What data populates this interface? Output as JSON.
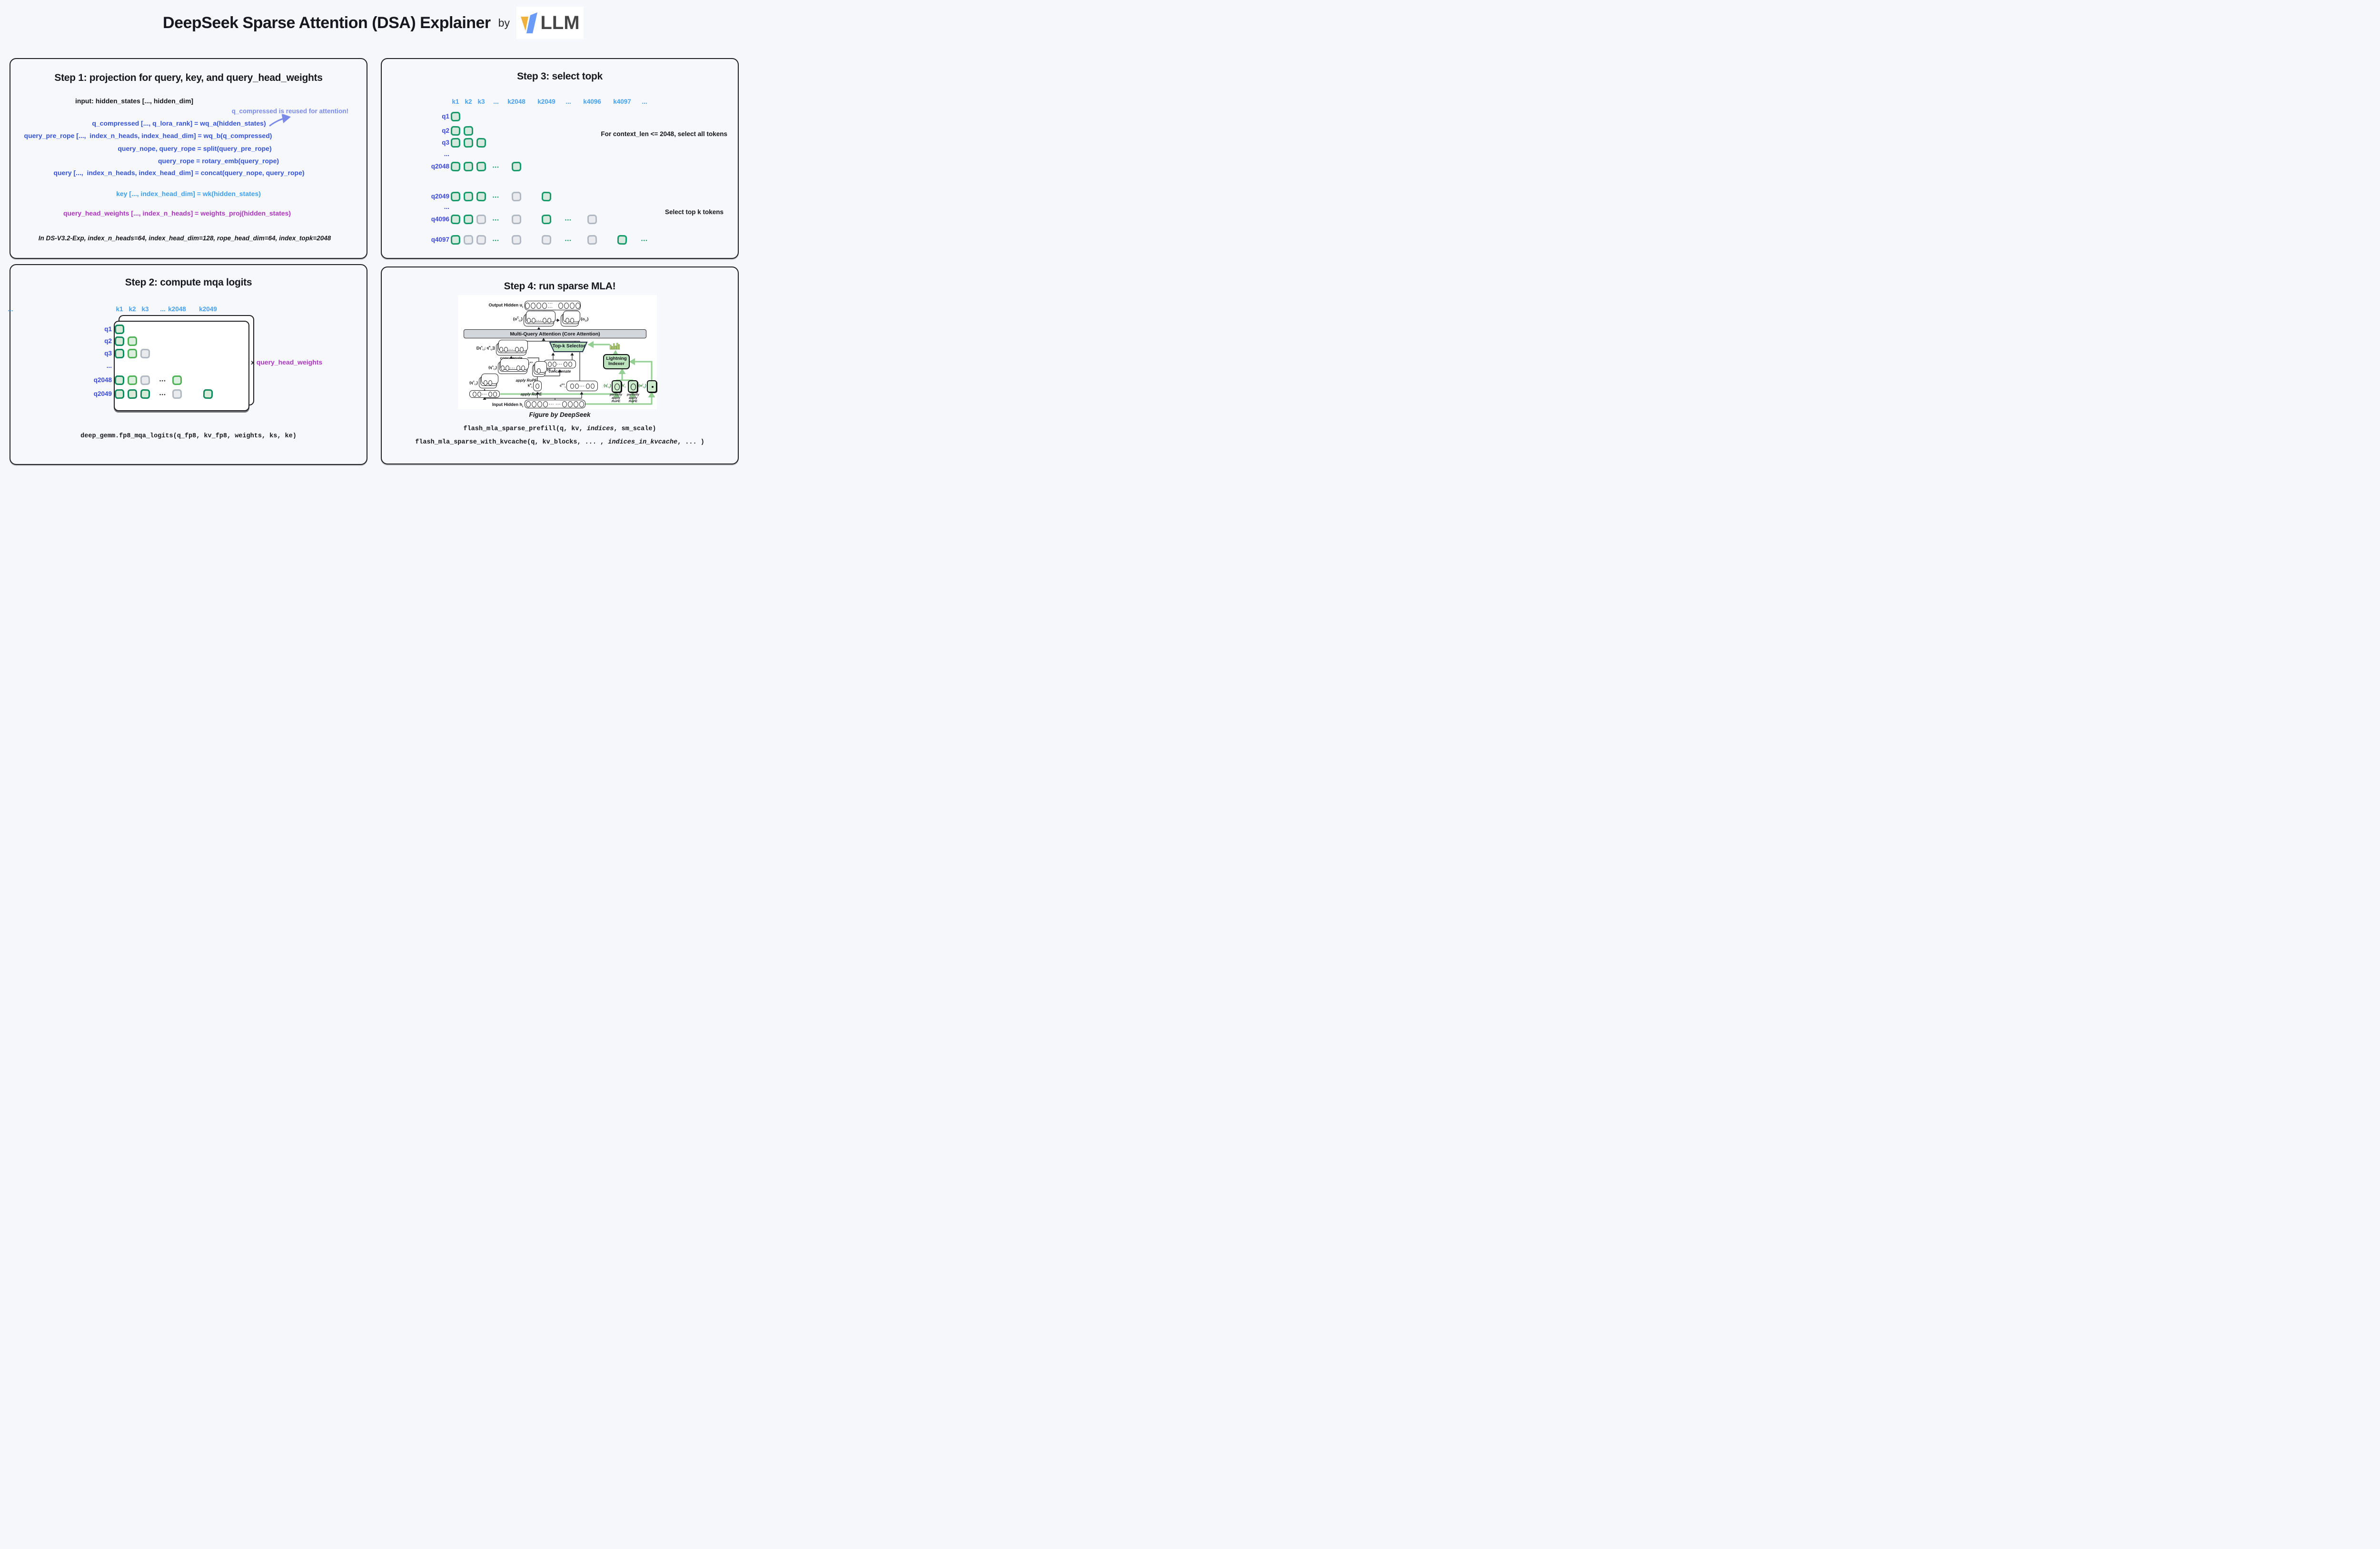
{
  "header": {
    "title": "DeepSeek Sparse Attention (DSA) Explainer",
    "by": "by",
    "logo_text": "LLM"
  },
  "colors": {
    "vllm_yellow": "#f0b23e",
    "vllm_blue": "#6a9bf7",
    "equation_blue": "#3453d6",
    "key_blue": "#3da0ee",
    "annotation_periwinkle": "#7a8ae8",
    "weights_magenta": "#ac34c0",
    "q_label_indigo": "#3a49dd",
    "k_label_sky": "#46a1f2",
    "selected_green": "#18996a",
    "selected_fill": "#d7e9de",
    "dark_green": "#0f8a5e",
    "medium_green": "#4db255",
    "unselected_gray": "#b1b8c2",
    "indexer_green": "#bce3be"
  },
  "step1": {
    "title": "Step 1: projection for query, key, and query_head_weights",
    "input_line": "input: hidden_states [..., hidden_dim]",
    "annotation": "q_compressed is reused for attention!",
    "eq_q_compressed": "q_compressed [..., q_lora_rank] = wq_a(hidden_states)",
    "eq_query_pre_rope": "query_pre_rope [...,  index_n_heads, index_head_dim] = wq_b(q_compressed)",
    "eq_split": "query_nope, query_rope = split(query_pre_rope)",
    "eq_rotary": "query_rope = rotary_emb(query_rope)",
    "eq_concat": "query [...,  index_n_heads, index_head_dim] = concat(query_nope, query_rope)",
    "eq_key": "key [..., index_head_dim] = wk(hidden_states)",
    "eq_weights": "query_head_weights [..., index_n_heads] = weights_proj(hidden_states)",
    "note": "In DS-V3.2-Exp, index_n_heads=64, index_head_dim=128, rope_head_dim=64, index_topk=2048"
  },
  "step2": {
    "title": "Step 2: compute mqa logits",
    "k_headers": [
      "k1",
      "k2",
      "k3",
      "...",
      "k2048",
      "k2049",
      "..."
    ],
    "rows": [
      {
        "label": "q1",
        "cells": [
          [
            0,
            "dk"
          ]
        ]
      },
      {
        "label": "q2",
        "cells": [
          [
            0,
            "dk"
          ],
          [
            1,
            "md"
          ]
        ]
      },
      {
        "label": "q3",
        "cells": [
          [
            0,
            "dk"
          ],
          [
            1,
            "md"
          ],
          [
            2,
            "un"
          ]
        ]
      },
      {
        "label": "...",
        "ellipsis": true,
        "cells": []
      },
      {
        "label": "q2048",
        "cells": [
          [
            0,
            "dk"
          ],
          [
            1,
            "md"
          ],
          [
            2,
            "un"
          ],
          [
            3,
            "dots"
          ],
          [
            4,
            "md"
          ]
        ]
      },
      {
        "label": "q2049",
        "cells": [
          [
            0,
            "dk"
          ],
          [
            1,
            "dk"
          ],
          [
            2,
            "dk"
          ],
          [
            3,
            "dots"
          ],
          [
            4,
            "un"
          ],
          [
            5,
            "dk"
          ]
        ]
      }
    ],
    "multiplier_x": "x",
    "multiplier_label": "query_head_weights",
    "code": "deep_gemm.fp8_mqa_logits(q_fp8, kv_fp8, weights, ks, ke)"
  },
  "step3": {
    "title": "Step 3: select topk",
    "k_headers": [
      "k1",
      "k2",
      "k3",
      "...",
      "k2048",
      "k2049",
      "...",
      "k4096",
      "k4097",
      "..."
    ],
    "rows": [
      {
        "label": "q1",
        "cells": [
          [
            0,
            "sel"
          ]
        ]
      },
      {
        "label": "q2",
        "cells": [
          [
            0,
            "sel"
          ],
          [
            1,
            "sel"
          ]
        ]
      },
      {
        "label": "q3",
        "cells": [
          [
            0,
            "sel"
          ],
          [
            1,
            "sel"
          ],
          [
            2,
            "sel"
          ]
        ]
      },
      {
        "label": "...",
        "ellipsis": true,
        "cells": []
      },
      {
        "label": "q2048",
        "cells": [
          [
            0,
            "sel"
          ],
          [
            1,
            "sel"
          ],
          [
            2,
            "sel"
          ],
          [
            3,
            "dots"
          ],
          [
            4,
            "sel"
          ]
        ]
      },
      {
        "label": "q2049",
        "cells": [
          [
            0,
            "sel"
          ],
          [
            1,
            "sel"
          ],
          [
            2,
            "sel"
          ],
          [
            3,
            "dots"
          ],
          [
            4,
            "un"
          ],
          [
            5,
            "sel"
          ]
        ]
      },
      {
        "label": "...",
        "ellipsis": true,
        "cells": []
      },
      {
        "label": "q4096",
        "cells": [
          [
            0,
            "sel"
          ],
          [
            1,
            "sel"
          ],
          [
            2,
            "un"
          ],
          [
            3,
            "dots"
          ],
          [
            4,
            "un"
          ],
          [
            5,
            "sel"
          ],
          [
            6,
            "dots"
          ],
          [
            7,
            "un"
          ]
        ]
      },
      {
        "label": "q4097",
        "cells": [
          [
            0,
            "sel"
          ],
          [
            1,
            "un"
          ],
          [
            2,
            "un"
          ],
          [
            3,
            "dots"
          ],
          [
            4,
            "un"
          ],
          [
            5,
            "un"
          ],
          [
            6,
            "dots"
          ],
          [
            7,
            "un"
          ],
          [
            8,
            "sel"
          ],
          [
            9,
            "dots"
          ]
        ]
      }
    ],
    "note_all": "For context_len <= 2048, select all tokens",
    "note_topk": "Select top k tokens"
  },
  "step4": {
    "title": "Step 4: run sparse MLA!",
    "caption": "Figure by DeepSeek",
    "code1": [
      [
        "flash_mla_sparse_prefill(q, kv, ",
        false
      ],
      [
        "indices",
        true
      ],
      [
        ", sm_scale)",
        false
      ]
    ],
    "code2": [
      [
        "flash_mla_sparse_with_kvcache(q, kv_blocks, ... , ",
        false
      ],
      [
        "indices_in_kvcache",
        true
      ],
      [
        ", ... )",
        false
      ]
    ],
    "figure": {
      "output_hidden": "Output Hidden u_{t}",
      "o_c": "{o^{C}_{t,i}}",
      "o": "{o_{t,i}}",
      "mqa": "Multi-Query Attention (Core Attention)",
      "q_ar": "{[q^{A}_{t,i}; q^{R}_{t,i}]}",
      "concatenate1": "concatenate",
      "topk": "Top-k Selector",
      "lightning_line1": "Lightning",
      "lightning_line2": "Indexer",
      "c_kv_concat": "{[c^{KV}_{t}; k^{R}_{t}]}",
      "concatenate2": "concatenate",
      "q_a": "{q^{A}_{t,i}}",
      "q_r": "{q^{R}_{t,i}}",
      "apply_rope1": "apply RoPE",
      "q_c": "{q^{C}_{t,i}}",
      "k_r": "k^{R}_{t}",
      "apply_rope2": "apply RoPE",
      "c_kv": "c^{KV}_{t}",
      "q_i": "{q^{I}_{t,j}}",
      "k_i": "k^{I}_{t}",
      "w_i": "{w^{I}_{t,j}}",
      "partially1": "partially apply RoPE",
      "partially2": "partially apply RoPE",
      "input_hidden": "Input Hidden h_{t}"
    }
  }
}
